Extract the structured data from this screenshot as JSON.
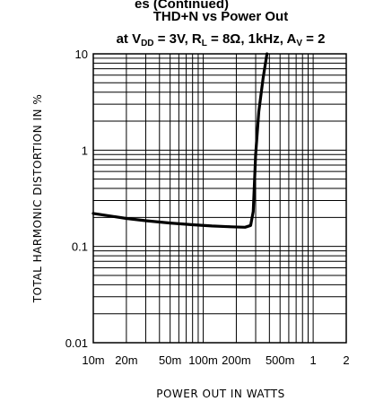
{
  "page": {
    "header_fragment": "es (Continued)"
  },
  "chart_data": {
    "type": "line",
    "title_line1": "THD+N vs Power Out",
    "title_line2": {
      "t1": "at V",
      "vdd_sub": "DD",
      "t2": " = 3V, R",
      "rl_sub": "L",
      "t3": " = 8Ω, 1kHz, A",
      "av_sub": "V",
      "t4": " = 2"
    },
    "xlabel": "POWER OUT IN WATTS",
    "ylabel": "TOTAL HARMONIC DISTORTION IN %",
    "x_scale": "log",
    "y_scale": "log",
    "xlim": [
      0.01,
      2
    ],
    "ylim": [
      0.01,
      10
    ],
    "grid": true,
    "x_ticks": [
      {
        "value": 0.01,
        "label": "10m"
      },
      {
        "value": 0.02,
        "label": "20m"
      },
      {
        "value": 0.05,
        "label": "50m"
      },
      {
        "value": 0.1,
        "label": "100m"
      },
      {
        "value": 0.2,
        "label": "200m"
      },
      {
        "value": 0.5,
        "label": "500m"
      },
      {
        "value": 1,
        "label": "1"
      },
      {
        "value": 2,
        "label": "2"
      }
    ],
    "y_ticks": [
      {
        "value": 0.01,
        "label": "0.01"
      },
      {
        "value": 0.1,
        "label": "0.1"
      },
      {
        "value": 1,
        "label": "1"
      },
      {
        "value": 10,
        "label": "10"
      }
    ],
    "series": [
      {
        "x": [
          0.01,
          0.015,
          0.02,
          0.03,
          0.05,
          0.08,
          0.12,
          0.18,
          0.24,
          0.27,
          0.285,
          0.3,
          0.32,
          0.35,
          0.38
        ],
        "y": [
          0.22,
          0.205,
          0.195,
          0.185,
          0.175,
          0.168,
          0.163,
          0.16,
          0.158,
          0.165,
          0.23,
          0.9,
          2.5,
          5.5,
          10
        ]
      }
    ]
  }
}
